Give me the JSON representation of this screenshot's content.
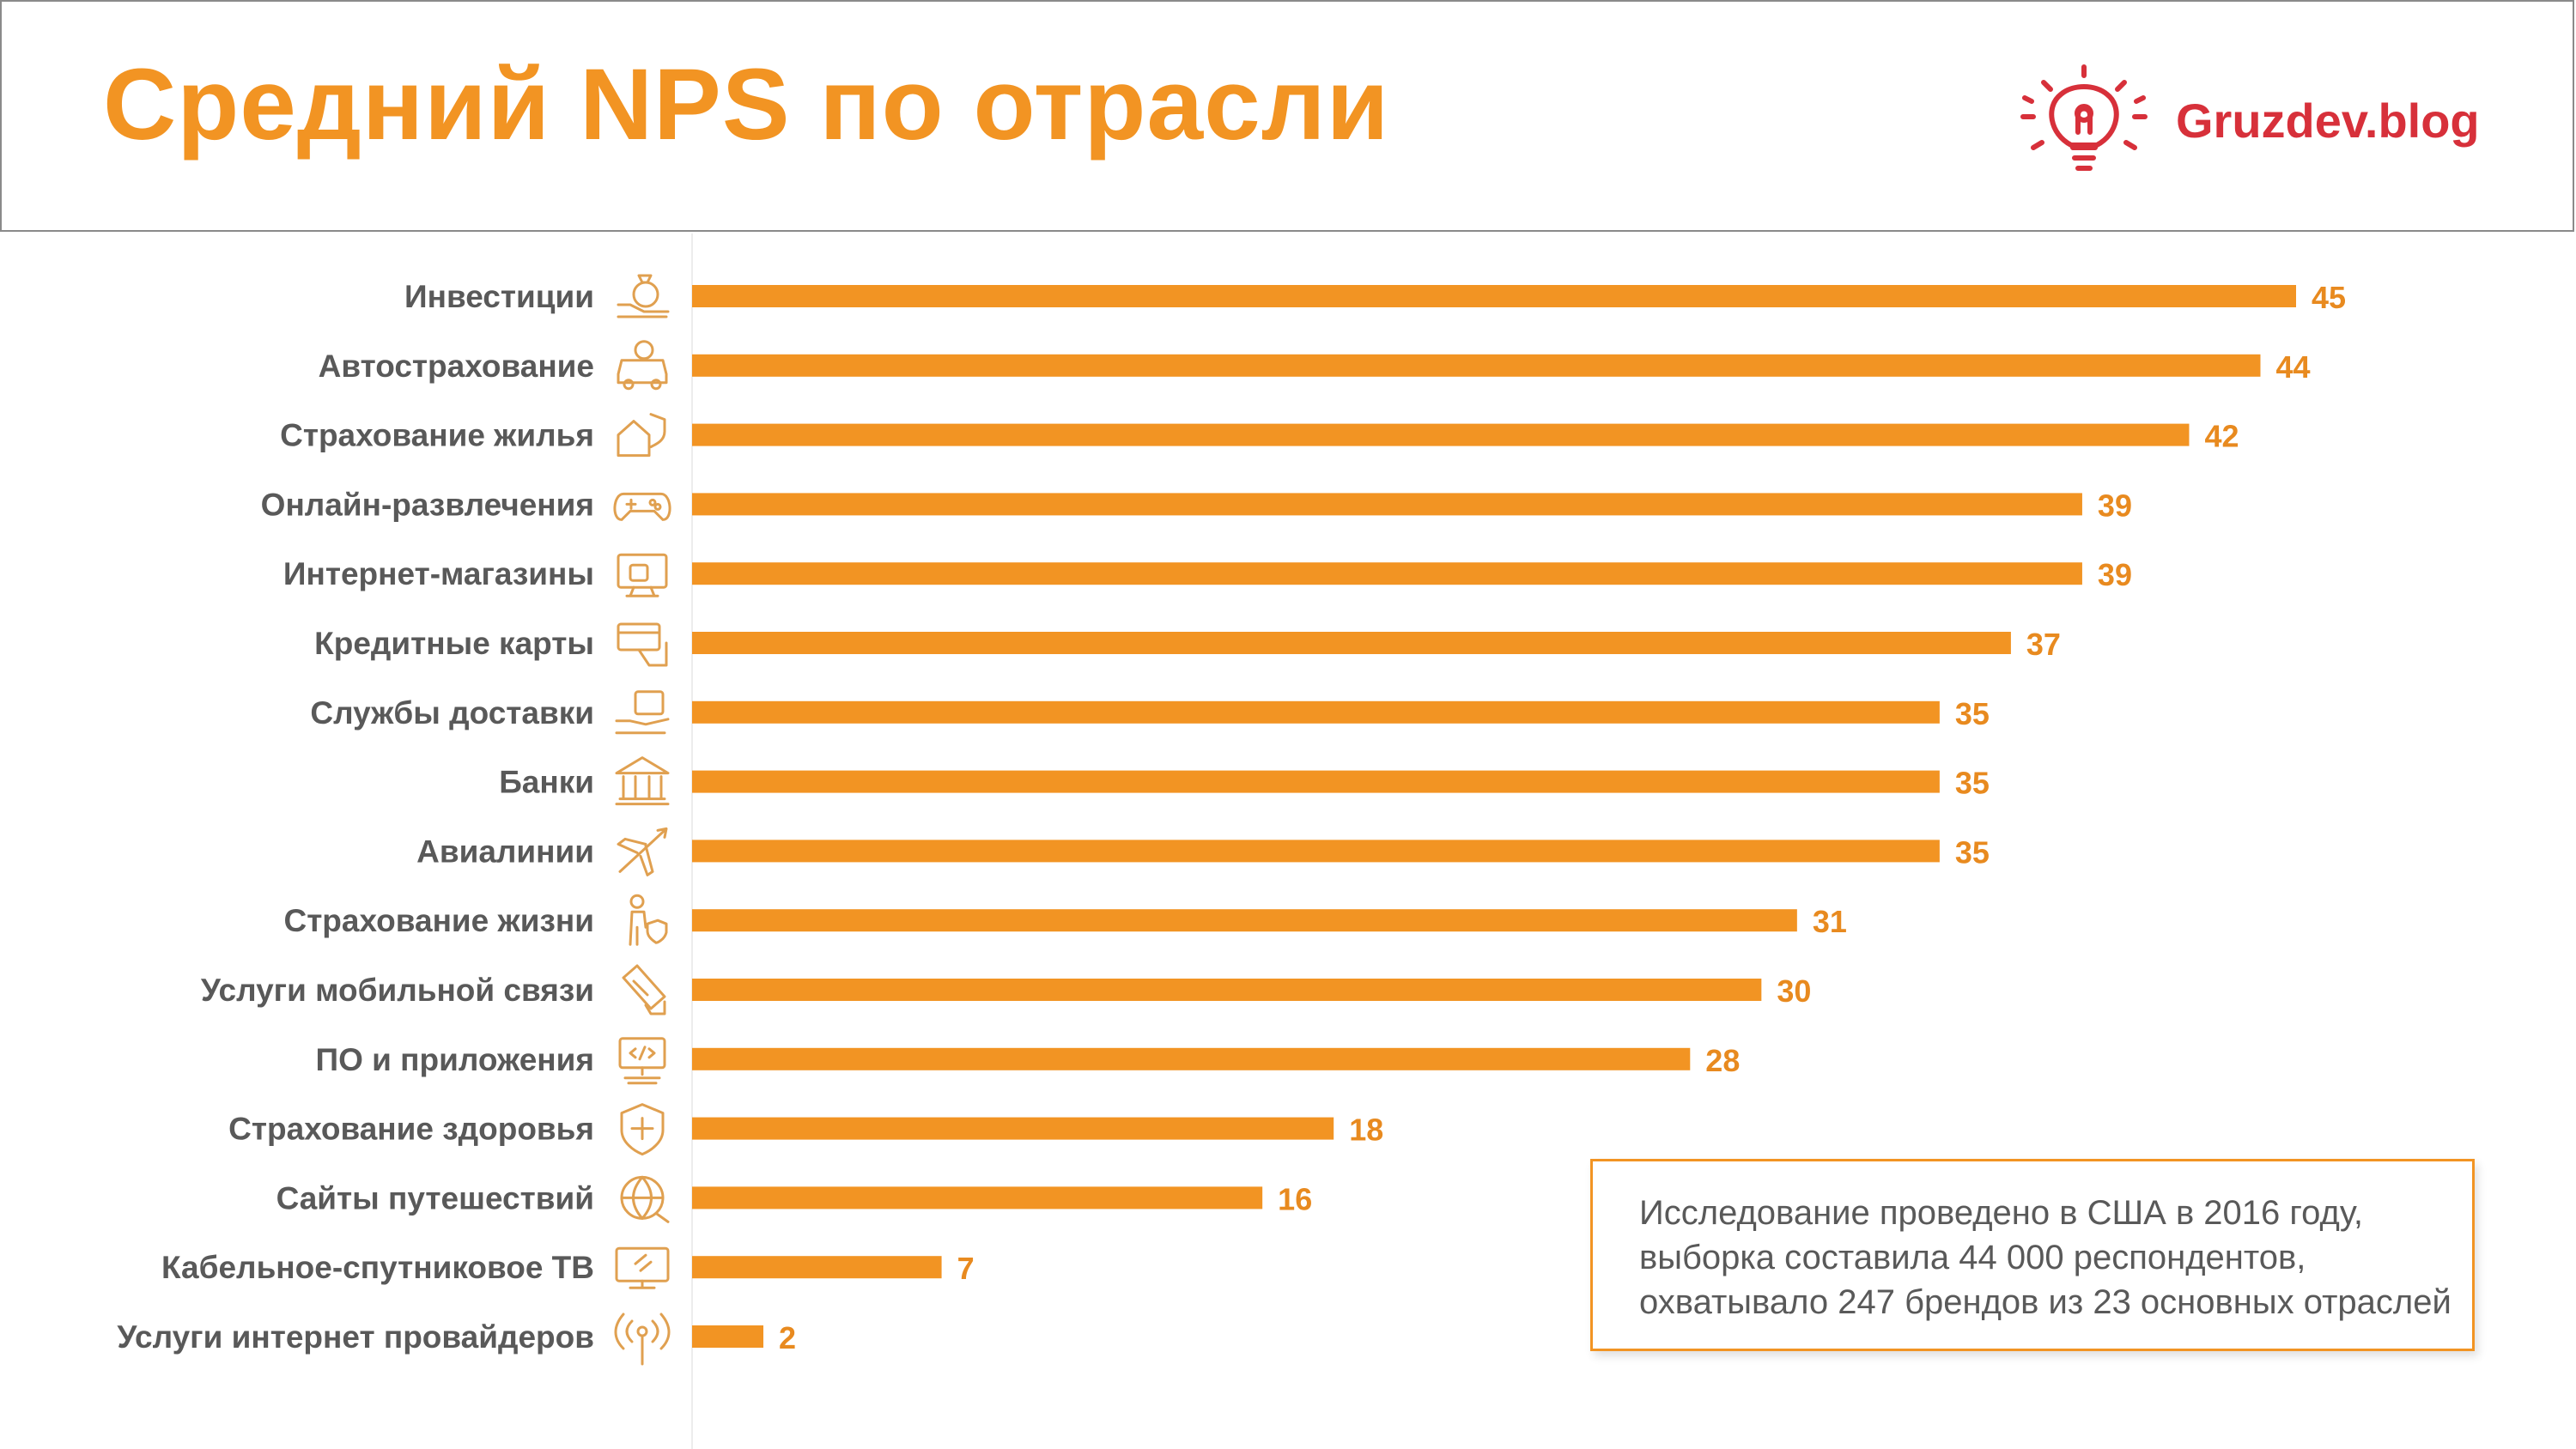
{
  "header": {
    "title": "Средний NPS по отрасли",
    "logo_text": "Gruzdev.blog"
  },
  "colors": {
    "bar": "#f29423",
    "label": "#595959",
    "value": "#e88a1f",
    "brand": "#d7303a",
    "icon": "#e0a050"
  },
  "note": {
    "lines": [
      "Исследование проведено в США в 2016 году,",
      "выборка составила 44 000 респондентов,",
      "охватывало 247 брендов из 23 основных отраслей"
    ]
  },
  "chart_data": {
    "type": "bar",
    "orientation": "horizontal",
    "categories": [
      "Инвестиции",
      "Автострахование",
      "Страхование жилья",
      "Онлайн-развлечения",
      "Интернет-магазины",
      "Кредитные карты",
      "Службы доставки",
      "Банки",
      "Авиалинии",
      "Страхование жизни",
      "Услуги мобильной связи",
      "ПО и приложения",
      "Страхование здоровья",
      "Сайты путешествий",
      "Кабельное-спутниковое ТВ",
      "Услуги интернет провайдеров"
    ],
    "values": [
      45,
      44,
      42,
      39,
      39,
      37,
      35,
      35,
      35,
      31,
      30,
      28,
      18,
      16,
      7,
      2
    ],
    "value_labels": [
      "45",
      "44",
      "42",
      "39",
      "39",
      "37",
      "35",
      "35",
      "35",
      "31",
      "30",
      "28",
      "18",
      "16",
      "7",
      "2"
    ],
    "icons": [
      "money-bag-icon",
      "car-insurance-icon",
      "home-insurance-icon",
      "gamepad-icon",
      "online-shop-icon",
      "credit-card-icon",
      "delivery-box-icon",
      "bank-icon",
      "airplane-icon",
      "life-insurance-icon",
      "mobile-phone-icon",
      "software-monitor-icon",
      "health-shield-icon",
      "globe-travel-icon",
      "tv-icon",
      "wifi-antenna-icon"
    ],
    "xlim": [
      0,
      45
    ],
    "grid": false,
    "legend": "none"
  }
}
